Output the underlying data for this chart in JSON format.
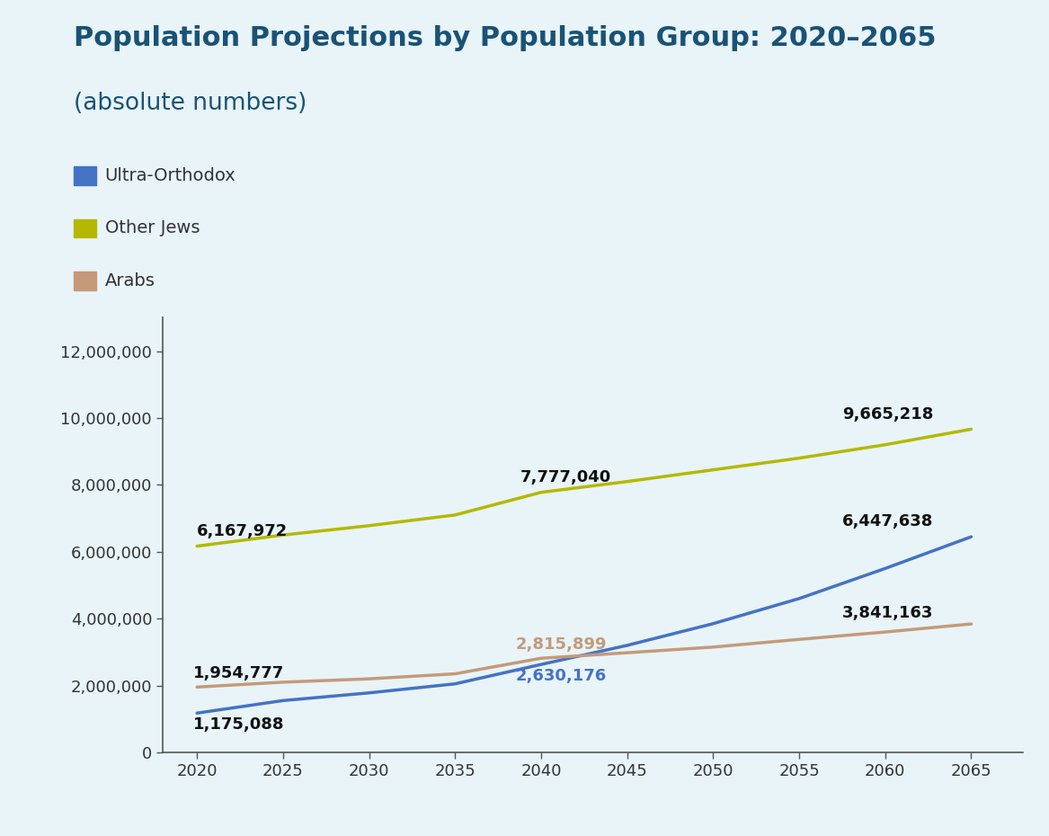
{
  "title_line1": "Population Projections by Population Group: 2020–2065",
  "title_line2": "(absolute numbers)",
  "background_color": "#e8f4f8",
  "title_color": "#1a5276",
  "years": [
    2020,
    2025,
    2030,
    2035,
    2040,
    2045,
    2050,
    2055,
    2060,
    2065
  ],
  "ultra_orthodox": [
    1175088,
    1550000,
    1780000,
    2050000,
    2630176,
    3200000,
    3850000,
    4600000,
    5500000,
    6447638
  ],
  "other_jews": [
    6167972,
    6500000,
    6780000,
    7100000,
    7777040,
    8100000,
    8450000,
    8800000,
    9200000,
    9665218
  ],
  "arabs": [
    1954777,
    2100000,
    2200000,
    2350000,
    2815899,
    2980000,
    3150000,
    3380000,
    3600000,
    3841163
  ],
  "ultra_orthodox_color": "#4472c4",
  "other_jews_color": "#b5b800",
  "arabs_color": "#c49a7a",
  "label_ultra_orthodox": "Ultra-Orthodox",
  "label_other_jews": "Other Jews",
  "label_arabs": "Arabs",
  "ylim": [
    0,
    13000000
  ],
  "xlim": [
    2018,
    2068
  ],
  "yticks": [
    0,
    2000000,
    4000000,
    6000000,
    8000000,
    10000000,
    12000000
  ],
  "xticks": [
    2020,
    2025,
    2030,
    2035,
    2040,
    2045,
    2050,
    2055,
    2060,
    2065
  ],
  "linewidth": 2.5,
  "ann_fontsize": 13,
  "title_fontsize": 22,
  "subtitle_fontsize": 19,
  "legend_fontsize": 14,
  "tick_fontsize": 13
}
